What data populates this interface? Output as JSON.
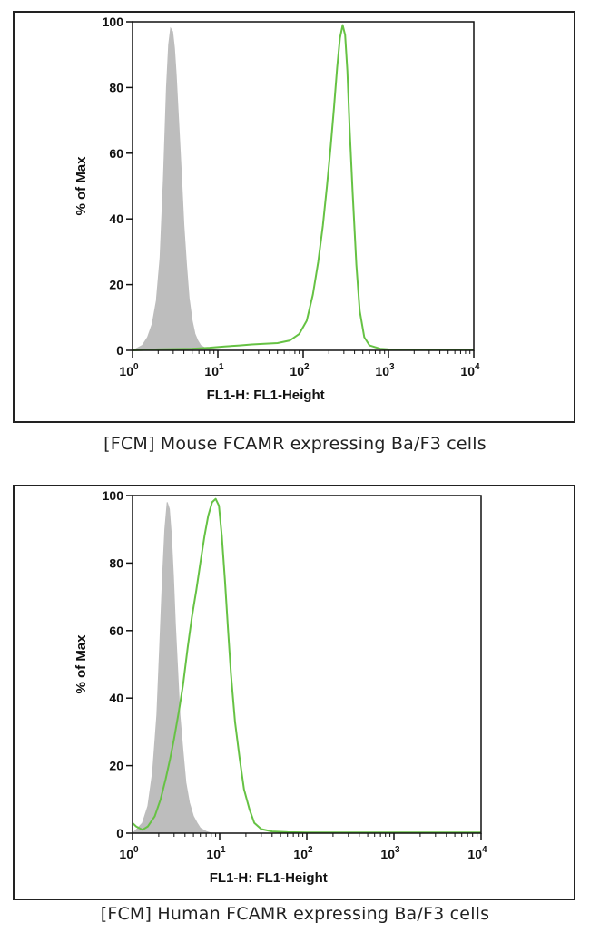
{
  "chart_data": [
    {
      "type": "line",
      "title": "",
      "xlabel": "FL1-H: FL1-Height",
      "ylabel": "% of Max",
      "x_scale": "log",
      "xlim": [
        1,
        10000
      ],
      "ylim": [
        0,
        100
      ],
      "x_ticks": [
        {
          "base": "10",
          "exp": "0"
        },
        {
          "base": "10",
          "exp": "1"
        },
        {
          "base": "10",
          "exp": "2"
        },
        {
          "base": "10",
          "exp": "3"
        },
        {
          "base": "10",
          "exp": "4"
        }
      ],
      "y_ticks": [
        "0",
        "20",
        "40",
        "60",
        "80",
        "100"
      ],
      "caption": "[FCM] Mouse FCAMR expressing Ba/F3 cells",
      "series": [
        {
          "style": "filled",
          "color": "#bdbdbd",
          "x": [
            1.0,
            1.1,
            1.3,
            1.5,
            1.7,
            1.9,
            2.1,
            2.3,
            2.5,
            2.65,
            2.8,
            2.95,
            3.1,
            3.25,
            3.4,
            3.6,
            3.8,
            4.0,
            4.3,
            4.6,
            5.0,
            5.4,
            5.8,
            6.3,
            7.0,
            8.0,
            10.0
          ],
          "y": [
            0,
            0.5,
            1.5,
            4,
            8,
            15,
            28,
            52,
            80,
            93,
            98,
            97,
            92,
            84,
            74,
            62,
            50,
            38,
            26,
            16,
            9,
            5,
            3,
            1.5,
            0.8,
            0.3,
            0
          ]
        },
        {
          "style": "line",
          "color": "#66c244",
          "x": [
            1.0,
            2.0,
            5.0,
            8.0,
            12,
            18,
            25,
            35,
            50,
            70,
            90,
            110,
            130,
            150,
            170,
            190,
            210,
            230,
            250,
            270,
            290,
            310,
            330,
            350,
            380,
            420,
            460,
            520,
            600,
            800,
            1000,
            3000,
            10000
          ],
          "y": [
            0,
            0.3,
            0.5,
            0.8,
            1.2,
            1.5,
            1.8,
            2.0,
            2.2,
            3.0,
            5,
            9,
            17,
            27,
            38,
            50,
            62,
            74,
            86,
            95,
            99,
            96,
            85,
            68,
            48,
            26,
            12,
            4,
            1.5,
            0.5,
            0.3,
            0.2,
            0.2
          ]
        }
      ]
    },
    {
      "type": "line",
      "title": "",
      "xlabel": "FL1-H: FL1-Height",
      "ylabel": "% of Max",
      "x_scale": "log",
      "xlim": [
        1,
        10000
      ],
      "ylim": [
        0,
        100
      ],
      "x_ticks": [
        {
          "base": "10",
          "exp": "0"
        },
        {
          "base": "10",
          "exp": "1"
        },
        {
          "base": "10",
          "exp": "2"
        },
        {
          "base": "10",
          "exp": "3"
        },
        {
          "base": "10",
          "exp": "4"
        }
      ],
      "y_ticks": [
        "0",
        "20",
        "40",
        "60",
        "80",
        "100"
      ],
      "caption": "[FCM] Human FCAMR expressing Ba/F3 cells",
      "series": [
        {
          "style": "filled",
          "color": "#bdbdbd",
          "x": [
            1.0,
            1.1,
            1.3,
            1.5,
            1.7,
            1.9,
            2.05,
            2.2,
            2.35,
            2.5,
            2.65,
            2.8,
            2.95,
            3.1,
            3.3,
            3.5,
            3.8,
            4.1,
            4.5,
            5.0,
            5.5,
            6.0,
            7.0,
            8.0
          ],
          "y": [
            0,
            1,
            3,
            8,
            18,
            35,
            55,
            75,
            90,
            98,
            96,
            88,
            76,
            62,
            48,
            35,
            24,
            15,
            9,
            5,
            3,
            1.5,
            0.5,
            0
          ]
        },
        {
          "style": "line",
          "color": "#66c244",
          "x": [
            1.0,
            1.1,
            1.3,
            1.5,
            1.8,
            2.1,
            2.4,
            2.7,
            3.0,
            3.4,
            3.8,
            4.3,
            4.8,
            5.4,
            6.0,
            6.7,
            7.4,
            8.2,
            9.0,
            9.8,
            10.6,
            11.5,
            12.5,
            13.5,
            15,
            17,
            19,
            22,
            25,
            30,
            40,
            60,
            100,
            1000,
            10000
          ],
          "y": [
            3,
            2,
            1,
            2,
            5,
            10,
            16,
            22,
            28,
            36,
            44,
            55,
            64,
            72,
            80,
            88,
            94,
            98,
            99,
            97,
            88,
            75,
            60,
            47,
            33,
            22,
            13,
            7,
            3,
            1.2,
            0.5,
            0.3,
            0.2,
            0.2,
            0.2
          ]
        }
      ]
    }
  ]
}
